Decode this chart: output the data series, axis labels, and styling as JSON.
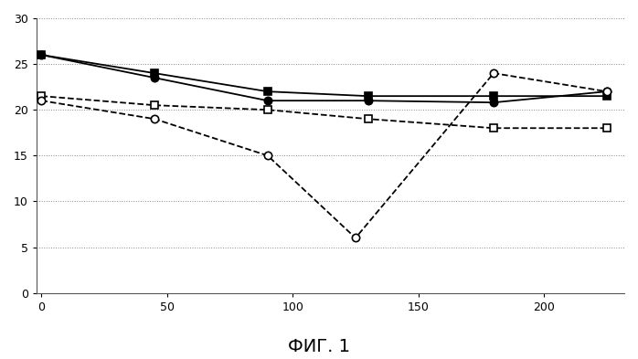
{
  "series": [
    {
      "label": "filled_square",
      "x": [
        0,
        45,
        90,
        130,
        180,
        225
      ],
      "y": [
        26.0,
        24.0,
        22.0,
        21.5,
        21.5,
        21.5
      ],
      "marker": "s",
      "filled": true,
      "linestyle": "-",
      "color": "#000000",
      "markersize": 6,
      "linewidth": 1.3
    },
    {
      "label": "filled_circle",
      "x": [
        0,
        45,
        90,
        130,
        180,
        225
      ],
      "y": [
        26.0,
        23.5,
        21.0,
        21.0,
        20.8,
        22.0
      ],
      "marker": "o",
      "filled": true,
      "linestyle": "-",
      "color": "#000000",
      "markersize": 6,
      "linewidth": 1.3
    },
    {
      "label": "open_square",
      "x": [
        0,
        45,
        90,
        130,
        180,
        225
      ],
      "y": [
        21.5,
        20.5,
        20.0,
        19.0,
        18.0,
        18.0
      ],
      "marker": "s",
      "filled": false,
      "linestyle": "--",
      "color": "#000000",
      "markersize": 6,
      "linewidth": 1.3
    },
    {
      "label": "open_circle",
      "x": [
        0,
        45,
        90,
        125,
        180,
        225
      ],
      "y": [
        21.0,
        19.0,
        15.0,
        6.0,
        24.0,
        22.0
      ],
      "marker": "o",
      "filled": false,
      "linestyle": "--",
      "color": "#000000",
      "markersize": 6,
      "linewidth": 1.3
    }
  ],
  "xlim": [
    -2,
    232
  ],
  "ylim": [
    0,
    30
  ],
  "xticks": [
    0,
    50,
    100,
    150,
    200
  ],
  "yticks": [
    0,
    5,
    10,
    15,
    20,
    25,
    30
  ],
  "caption": "ФИГ. 1",
  "caption_fontsize": 14,
  "background_color": "#ffffff",
  "grid_color": "#888888",
  "figsize": [
    6.98,
    3.93
  ],
  "dpi": 100
}
